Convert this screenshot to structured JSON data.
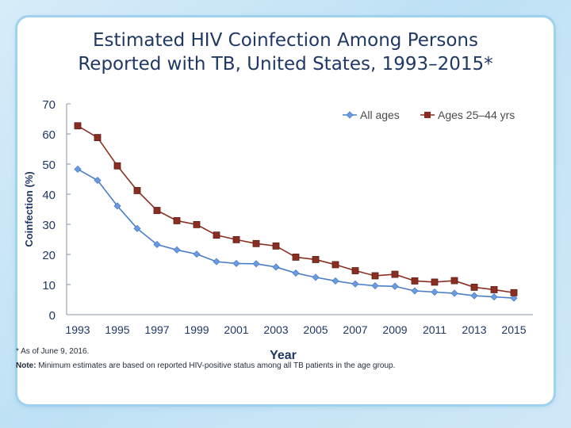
{
  "slide": {
    "title_line1": "Estimated HIV Coinfection Among Persons",
    "title_line2": "Reported with TB, United States, 1993–2015*"
  },
  "footnotes": {
    "asof": "*  As of June 9, 2016.",
    "note_label": "Note:",
    "note_text": " Minimum estimates are based on reported HIV-positive status among all TB patients in the age group."
  },
  "colors": {
    "all_ages": "#4a7ec9",
    "ages_25_44": "#8b2e22",
    "axis_text": "#1f3864",
    "grid": "#c9d3df"
  },
  "chart_data": {
    "type": "line",
    "title": "Estimated HIV Coinfection Among Persons Reported with TB, United States, 1993–2015*",
    "xlabel": "Year",
    "ylabel": "Coinfection (%)",
    "ylim": [
      0,
      70
    ],
    "yticks": [
      0,
      10,
      20,
      30,
      40,
      50,
      60,
      70
    ],
    "x": [
      1993,
      1994,
      1995,
      1996,
      1997,
      1998,
      1999,
      2000,
      2001,
      2002,
      2003,
      2004,
      2005,
      2006,
      2007,
      2008,
      2009,
      2010,
      2011,
      2012,
      2013,
      2014,
      2015
    ],
    "xtick_labels": [
      "1993",
      "1995",
      "1997",
      "1999",
      "2001",
      "2003",
      "2005",
      "2007",
      "2009",
      "2011",
      "2013",
      "2015"
    ],
    "legend_position": "top-right",
    "series": [
      {
        "name": "All ages",
        "marker": "diamond",
        "values": [
          48.3,
          44.6,
          36.1,
          28.6,
          23.3,
          21.5,
          20.1,
          17.6,
          17.0,
          16.9,
          15.8,
          13.8,
          12.4,
          11.2,
          10.2,
          9.6,
          9.4,
          7.9,
          7.5,
          7.1,
          6.3,
          5.9,
          5.5
        ]
      },
      {
        "name": "Ages 25–44 yrs",
        "marker": "square",
        "values": [
          62.7,
          58.8,
          49.4,
          41.2,
          34.6,
          31.2,
          29.9,
          26.4,
          24.9,
          23.6,
          22.8,
          19.1,
          18.3,
          16.6,
          14.6,
          12.9,
          13.4,
          11.2,
          10.8,
          11.3,
          9.1,
          8.3,
          7.3
        ]
      }
    ]
  }
}
